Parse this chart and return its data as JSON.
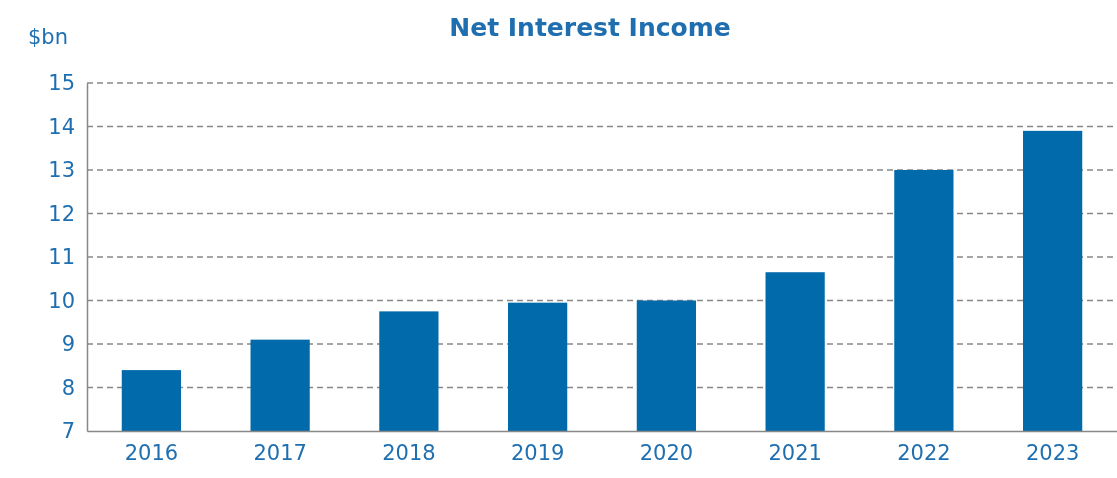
{
  "chart_data": {
    "type": "bar",
    "title": "Net Interest Income",
    "ylabel": "$bn",
    "categories": [
      "2016",
      "2017",
      "2018",
      "2019",
      "2020",
      "2021",
      "2022",
      "2023"
    ],
    "values": [
      8.4,
      9.1,
      9.75,
      9.95,
      10.0,
      10.65,
      13.0,
      13.9
    ],
    "color": "#006aaa",
    "ylim": [
      7,
      15
    ],
    "yticks": [
      7,
      8,
      9,
      10,
      11,
      12,
      13,
      14,
      15
    ],
    "grid": "y"
  }
}
